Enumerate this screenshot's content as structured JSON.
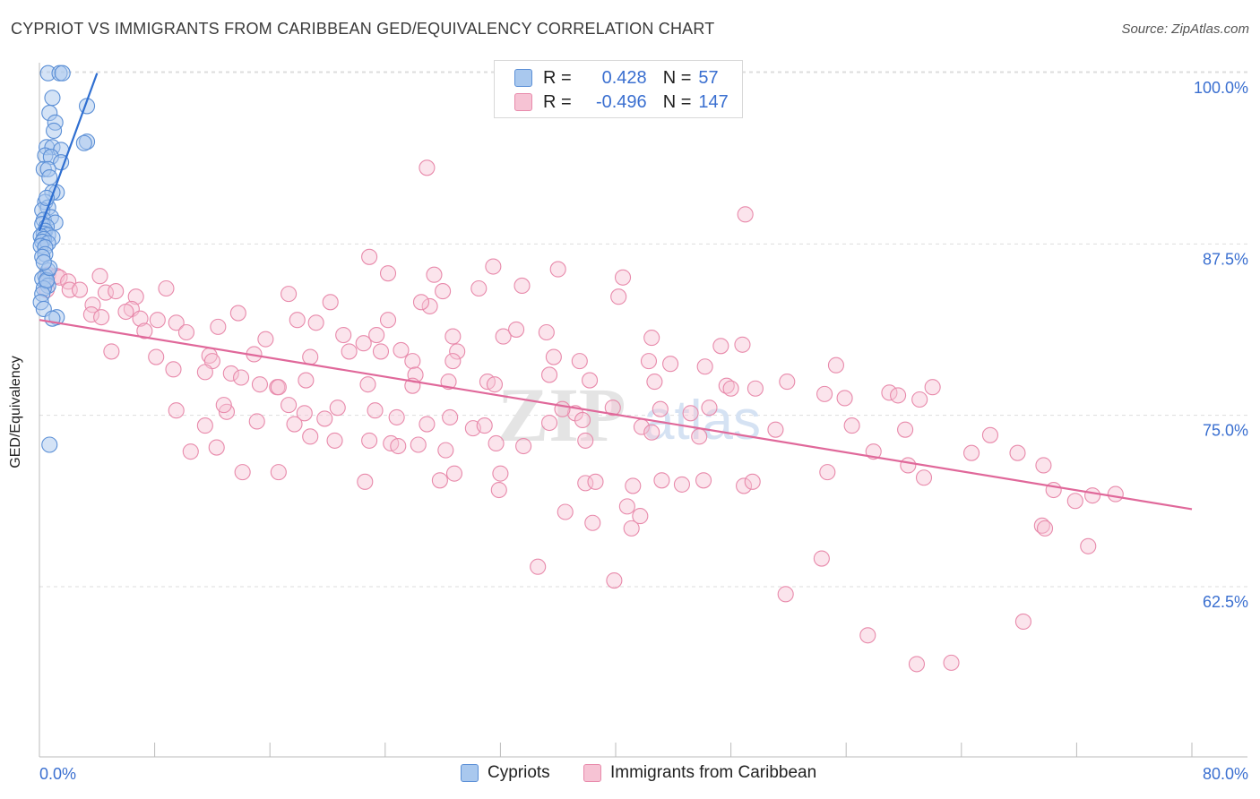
{
  "title": "CYPRIOT VS IMMIGRANTS FROM CARIBBEAN GED/EQUIVALENCY CORRELATION CHART",
  "source": "Source: ZipAtlas.com",
  "watermark": {
    "left": "ZIP",
    "right": "atlas"
  },
  "legend": {
    "rows": [
      {
        "r_label": "R =",
        "r_value": "0.428",
        "n_label": "N =",
        "n_value": "57"
      },
      {
        "r_label": "R =",
        "r_value": "-0.496",
        "n_label": "N =",
        "n_value": "147"
      }
    ]
  },
  "bottom_legend": {
    "series1": "Cypriots",
    "series2": "Immigrants from Caribbean"
  },
  "colors": {
    "blue_fill": "#a9c8ee",
    "blue_stroke": "#5b8fd6",
    "blue_line": "#2f6fd1",
    "pink_fill": "#f6c3d4",
    "pink_stroke": "#e88aab",
    "pink_line": "#e0689a",
    "tick_label": "#3a6fd0",
    "grid": "#dddddd"
  },
  "chart_data": {
    "type": "scatter",
    "title": "CYPRIOT VS IMMIGRANTS FROM CARIBBEAN GED/EQUIVALENCY CORRELATION CHART",
    "xlabel": "",
    "ylabel": "GED/Equivalency",
    "xlim": [
      0,
      80
    ],
    "ylim": [
      50,
      101
    ],
    "x_tick_labels": [
      "0.0%",
      "80.0%"
    ],
    "y_ticks": [
      62.5,
      75.0,
      87.5,
      100.0
    ],
    "y_tick_labels": [
      "62.5%",
      "75.0%",
      "87.5%",
      "100.0%"
    ],
    "grid": true,
    "legend_position": "top-center",
    "series": [
      {
        "name": "Cypriots",
        "color": "#5b8fd6",
        "r": 0.428,
        "n": 57,
        "trend": {
          "x": [
            0.0,
            4.0
          ],
          "y": [
            89.5,
            101.0
          ]
        },
        "points": [
          [
            0.6,
            101.0
          ],
          [
            1.4,
            101.0
          ],
          [
            1.6,
            101.0
          ],
          [
            0.9,
            99.2
          ],
          [
            3.3,
            98.6
          ],
          [
            0.7,
            98.1
          ],
          [
            1.1,
            97.4
          ],
          [
            1.0,
            96.8
          ],
          [
            3.3,
            96.0
          ],
          [
            3.1,
            95.9
          ],
          [
            0.5,
            95.6
          ],
          [
            0.9,
            95.6
          ],
          [
            1.5,
            95.4
          ],
          [
            0.4,
            95.0
          ],
          [
            0.8,
            94.9
          ],
          [
            1.5,
            94.5
          ],
          [
            0.3,
            94.0
          ],
          [
            0.6,
            94.0
          ],
          [
            0.7,
            93.4
          ],
          [
            1.2,
            92.3
          ],
          [
            0.9,
            92.3
          ],
          [
            0.4,
            91.6
          ],
          [
            0.6,
            91.2
          ],
          [
            0.2,
            91.0
          ],
          [
            0.8,
            90.5
          ],
          [
            0.3,
            90.3
          ],
          [
            1.1,
            90.1
          ],
          [
            0.2,
            90.0
          ],
          [
            0.5,
            89.8
          ],
          [
            0.4,
            89.5
          ],
          [
            0.3,
            89.3
          ],
          [
            0.6,
            89.2
          ],
          [
            0.1,
            89.1
          ],
          [
            0.9,
            89.0
          ],
          [
            0.3,
            88.9
          ],
          [
            0.2,
            88.7
          ],
          [
            0.6,
            88.6
          ],
          [
            0.1,
            88.4
          ],
          [
            0.4,
            88.3
          ],
          [
            0.4,
            87.8
          ],
          [
            0.2,
            87.6
          ],
          [
            0.6,
            86.6
          ],
          [
            0.4,
            86.2
          ],
          [
            0.2,
            86.0
          ],
          [
            0.5,
            85.8
          ],
          [
            0.6,
            85.5
          ],
          [
            0.3,
            85.3
          ],
          [
            0.2,
            84.9
          ],
          [
            0.1,
            84.3
          ],
          [
            0.3,
            83.8
          ],
          [
            1.2,
            83.2
          ],
          [
            0.9,
            83.1
          ],
          [
            0.7,
            73.9
          ],
          [
            0.5,
            85.9
          ],
          [
            0.7,
            86.8
          ],
          [
            0.3,
            87.2
          ],
          [
            0.5,
            91.9
          ]
        ]
      },
      {
        "name": "Immigrants from Caribbean",
        "color": "#e88aab",
        "r": -0.496,
        "n": 147,
        "trend": {
          "x": [
            0.0,
            80.0
          ],
          "y": [
            83.0,
            69.2
          ]
        },
        "points": [
          [
            0.6,
            86.3
          ],
          [
            1.2,
            86.2
          ],
          [
            1.4,
            86.1
          ],
          [
            4.2,
            86.2
          ],
          [
            2.0,
            85.8
          ],
          [
            0.5,
            85.2
          ],
          [
            2.1,
            85.2
          ],
          [
            2.8,
            85.2
          ],
          [
            4.6,
            85.0
          ],
          [
            5.3,
            85.1
          ],
          [
            6.7,
            84.7
          ],
          [
            8.8,
            85.3
          ],
          [
            17.3,
            84.9
          ],
          [
            20.2,
            84.3
          ],
          [
            27.1,
            84.0
          ],
          [
            26.5,
            84.3
          ],
          [
            3.7,
            84.1
          ],
          [
            3.6,
            83.4
          ],
          [
            4.3,
            83.2
          ],
          [
            6.4,
            83.8
          ],
          [
            6.0,
            83.6
          ],
          [
            7.0,
            83.1
          ],
          [
            8.2,
            83.0
          ],
          [
            9.5,
            82.8
          ],
          [
            13.8,
            83.5
          ],
          [
            17.9,
            83.0
          ],
          [
            24.2,
            83.0
          ],
          [
            19.2,
            82.8
          ],
          [
            12.4,
            82.5
          ],
          [
            7.3,
            82.2
          ],
          [
            10.2,
            82.1
          ],
          [
            15.7,
            81.6
          ],
          [
            21.1,
            81.9
          ],
          [
            23.4,
            81.9
          ],
          [
            28.7,
            81.8
          ],
          [
            32.2,
            81.8
          ],
          [
            33.1,
            82.3
          ],
          [
            35.2,
            82.1
          ],
          [
            42.5,
            81.7
          ],
          [
            48.8,
            81.2
          ],
          [
            47.3,
            81.1
          ],
          [
            22.5,
            81.3
          ],
          [
            23.7,
            80.7
          ],
          [
            25.1,
            80.8
          ],
          [
            29.0,
            80.7
          ],
          [
            14.9,
            80.5
          ],
          [
            11.8,
            80.4
          ],
          [
            5.0,
            80.7
          ],
          [
            8.1,
            80.3
          ],
          [
            12.0,
            80.0
          ],
          [
            18.8,
            80.3
          ],
          [
            21.5,
            80.7
          ],
          [
            35.7,
            80.3
          ],
          [
            25.9,
            80.0
          ],
          [
            28.7,
            80.0
          ],
          [
            42.3,
            80.0
          ],
          [
            46.2,
            79.6
          ],
          [
            37.5,
            80.0
          ],
          [
            43.8,
            79.8
          ],
          [
            55.3,
            79.7
          ],
          [
            35.4,
            79.0
          ],
          [
            26.1,
            79.0
          ],
          [
            11.5,
            79.2
          ],
          [
            9.3,
            79.4
          ],
          [
            13.3,
            79.1
          ],
          [
            14.0,
            78.8
          ],
          [
            15.3,
            78.3
          ],
          [
            16.5,
            78.1
          ],
          [
            18.5,
            78.6
          ],
          [
            16.6,
            78.1
          ],
          [
            22.8,
            78.3
          ],
          [
            25.9,
            78.2
          ],
          [
            28.4,
            78.5
          ],
          [
            31.1,
            78.5
          ],
          [
            31.6,
            78.3
          ],
          [
            38.2,
            78.6
          ],
          [
            42.7,
            78.5
          ],
          [
            47.7,
            78.2
          ],
          [
            49.7,
            78.0
          ],
          [
            51.9,
            78.5
          ],
          [
            54.5,
            77.6
          ],
          [
            59.0,
            77.7
          ],
          [
            48.0,
            78.0
          ],
          [
            55.9,
            77.3
          ],
          [
            59.6,
            77.5
          ],
          [
            61.1,
            77.2
          ],
          [
            62.0,
            78.1
          ],
          [
            18.4,
            76.2
          ],
          [
            20.7,
            76.6
          ],
          [
            17.3,
            76.8
          ],
          [
            23.3,
            76.4
          ],
          [
            37.2,
            76.2
          ],
          [
            36.3,
            76.5
          ],
          [
            39.8,
            76.6
          ],
          [
            43.1,
            76.5
          ],
          [
            45.2,
            76.2
          ],
          [
            46.5,
            76.6
          ],
          [
            13.0,
            76.3
          ],
          [
            12.8,
            76.8
          ],
          [
            9.5,
            76.4
          ],
          [
            11.5,
            75.3
          ],
          [
            15.1,
            75.6
          ],
          [
            17.7,
            75.4
          ],
          [
            19.8,
            75.8
          ],
          [
            24.8,
            75.9
          ],
          [
            26.9,
            75.4
          ],
          [
            28.5,
            75.9
          ],
          [
            30.1,
            75.1
          ],
          [
            30.9,
            75.3
          ],
          [
            35.4,
            75.5
          ],
          [
            37.7,
            75.7
          ],
          [
            41.8,
            75.2
          ],
          [
            51.1,
            75.0
          ],
          [
            56.4,
            75.3
          ],
          [
            60.1,
            75.0
          ],
          [
            18.8,
            74.5
          ],
          [
            20.5,
            74.2
          ],
          [
            22.9,
            74.2
          ],
          [
            24.4,
            74.0
          ],
          [
            24.9,
            73.8
          ],
          [
            26.3,
            73.9
          ],
          [
            28.2,
            73.5
          ],
          [
            31.7,
            74.0
          ],
          [
            33.6,
            73.8
          ],
          [
            37.9,
            74.2
          ],
          [
            42.5,
            74.8
          ],
          [
            45.8,
            74.5
          ],
          [
            12.3,
            73.7
          ],
          [
            10.5,
            73.4
          ],
          [
            14.1,
            71.9
          ],
          [
            16.6,
            71.9
          ],
          [
            22.6,
            71.2
          ],
          [
            27.8,
            71.3
          ],
          [
            28.8,
            71.8
          ],
          [
            32.0,
            71.8
          ],
          [
            37.9,
            71.1
          ],
          [
            38.6,
            71.2
          ],
          [
            41.2,
            70.9
          ],
          [
            31.9,
            70.6
          ],
          [
            43.2,
            71.3
          ],
          [
            44.6,
            71.0
          ],
          [
            46.1,
            71.3
          ],
          [
            48.9,
            70.9
          ],
          [
            49.5,
            71.2
          ],
          [
            54.7,
            71.9
          ],
          [
            60.3,
            72.4
          ],
          [
            61.4,
            71.5
          ],
          [
            57.9,
            73.4
          ],
          [
            64.7,
            73.3
          ],
          [
            66.0,
            74.6
          ],
          [
            69.7,
            72.4
          ],
          [
            70.4,
            70.6
          ],
          [
            71.9,
            69.8
          ],
          [
            73.1,
            70.2
          ],
          [
            74.7,
            70.3
          ],
          [
            67.9,
            73.3
          ],
          [
            69.6,
            68.0
          ],
          [
            72.8,
            66.5
          ],
          [
            34.6,
            65.0
          ],
          [
            39.9,
            64.0
          ],
          [
            41.1,
            67.8
          ],
          [
            54.3,
            65.6
          ],
          [
            51.8,
            63.0
          ],
          [
            57.5,
            60.0
          ],
          [
            63.3,
            58.0
          ],
          [
            60.9,
            57.9
          ],
          [
            69.8,
            67.8
          ],
          [
            68.3,
            61.0
          ],
          [
            41.7,
            68.7
          ],
          [
            40.8,
            69.4
          ],
          [
            38.4,
            68.2
          ],
          [
            36.5,
            69.0
          ],
          [
            26.9,
            94.1
          ],
          [
            49.0,
            90.7
          ],
          [
            27.4,
            86.3
          ],
          [
            31.5,
            86.9
          ],
          [
            22.9,
            87.6
          ],
          [
            24.2,
            86.4
          ],
          [
            36.0,
            86.7
          ],
          [
            40.5,
            86.1
          ],
          [
            33.5,
            85.5
          ],
          [
            28.0,
            85.1
          ],
          [
            30.5,
            85.3
          ],
          [
            40.2,
            84.7
          ]
        ]
      }
    ]
  }
}
